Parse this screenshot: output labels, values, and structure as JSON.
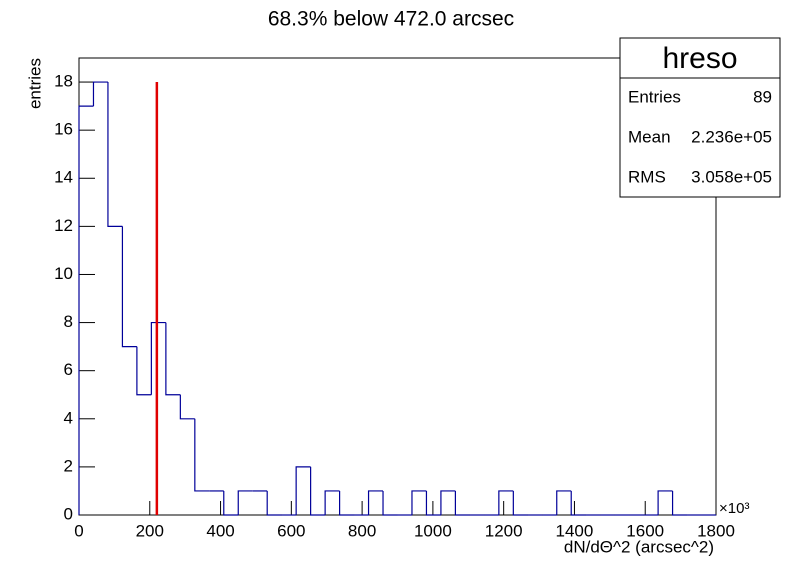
{
  "chart_data": {
    "type": "histogram",
    "title": "68.3% below 472.0 arcsec",
    "x_label": "dN/dΘ^2 (arcsec^2)",
    "y_label": "entries",
    "x_exponent": "×10³",
    "color": "#000099",
    "bins": [
      0,
      40.9,
      81.8,
      122.7,
      163.6,
      204.5,
      245.5,
      286.4,
      327.3,
      368.2,
      409.1,
      450,
      490.9,
      531.8,
      572.7,
      613.6,
      654.5,
      695.5,
      736.4,
      777.3,
      818.2,
      859.1,
      900,
      940.9,
      981.8,
      1022.7,
      1063.6,
      1104.5,
      1145.5,
      1186.4,
      1227.3,
      1268.2,
      1309.1,
      1350,
      1390.9,
      1431.8,
      1472.7,
      1513.6,
      1554.5,
      1595.5,
      1636.4,
      1677.3,
      1718.2,
      1759.1,
      1800
    ],
    "counts": [
      17,
      18,
      12,
      7,
      5,
      8,
      5,
      4,
      1,
      1,
      0,
      1,
      1,
      0,
      0,
      2,
      0,
      1,
      0,
      0,
      1,
      0,
      0,
      1,
      0,
      1,
      0,
      0,
      0,
      1,
      0,
      0,
      0,
      1,
      0,
      0,
      0,
      0,
      0,
      0,
      1,
      0,
      0,
      0
    ],
    "xlim": [
      0,
      1800
    ],
    "xticks": [
      0,
      200,
      400,
      600,
      800,
      1000,
      1200,
      1400,
      1600,
      1800
    ],
    "ylim": [
      0,
      19
    ],
    "yticks": [
      0,
      2,
      4,
      6,
      8,
      10,
      12,
      14,
      16,
      18
    ],
    "vline": {
      "x": 220,
      "ymin": 0,
      "ymax": 18,
      "color": "#e00000"
    },
    "stats": {
      "name": "hreso",
      "rows": [
        {
          "label": "Entries",
          "value": "89"
        },
        {
          "label": "Mean",
          "value": "2.236e+05"
        },
        {
          "label": "RMS",
          "value": "3.058e+05"
        }
      ]
    }
  }
}
